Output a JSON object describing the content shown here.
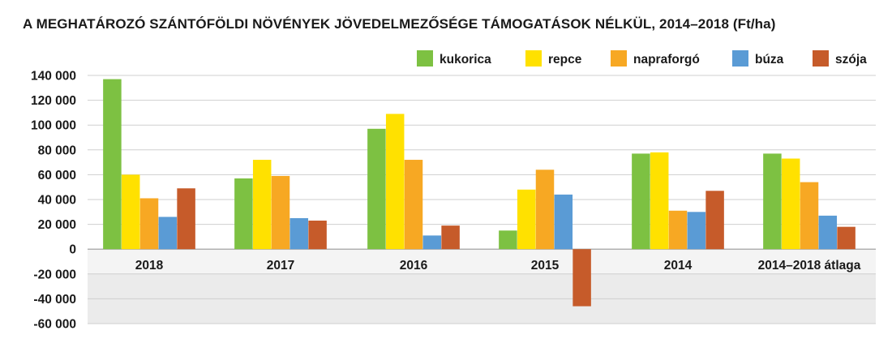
{
  "chart_data": {
    "type": "bar",
    "title": "A MEGHATÁROZÓ SZÁNTÓFÖLDI NÖVÉNYEK JÖVEDELMEZŐSÉGE TÁMOGATÁSOK NÉLKÜL, 2014–2018 (Ft/ha)",
    "xlabel": "",
    "ylabel": "",
    "ylim": [
      -60000,
      140000
    ],
    "yticks": [
      140000,
      120000,
      100000,
      80000,
      60000,
      40000,
      20000,
      0,
      -20000,
      -40000,
      -60000
    ],
    "ytick_labels": [
      "140 000",
      "120 000",
      "100 000",
      "80 000",
      "60 000",
      "40 000",
      "20 000",
      "0",
      "-20 000",
      "-40 000",
      "-60 000"
    ],
    "categories": [
      "2018",
      "2017",
      "2016",
      "2015",
      "2014",
      "2014–2018 átlaga"
    ],
    "legend_position": "top-right",
    "grid": true,
    "series": [
      {
        "name": "kukorica",
        "color": "#7dc142",
        "values": [
          137000,
          57000,
          97000,
          15000,
          77000,
          77000
        ]
      },
      {
        "name": "repce",
        "color": "#ffe100",
        "values": [
          60000,
          72000,
          109000,
          48000,
          78000,
          73000
        ]
      },
      {
        "name": "napraforgó",
        "color": "#f7a823",
        "values": [
          41000,
          59000,
          72000,
          64000,
          31000,
          54000
        ]
      },
      {
        "name": "búza",
        "color": "#5a9bd5",
        "values": [
          26000,
          25000,
          11000,
          44000,
          30000,
          27000
        ]
      },
      {
        "name": "szója",
        "color": "#c65b2a",
        "values": [
          49000,
          23000,
          19000,
          -46000,
          47000,
          18000
        ]
      }
    ]
  }
}
